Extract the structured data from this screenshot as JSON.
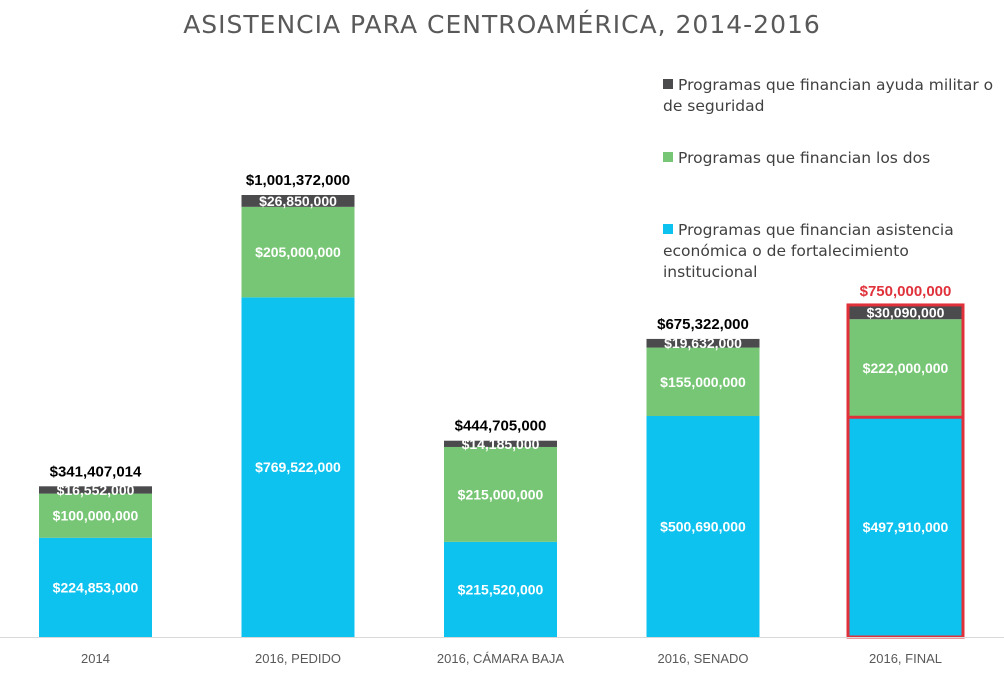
{
  "colors": {
    "military": "#4b4b4d",
    "both": "#77c675",
    "economic": "#0ec2ef",
    "highlight": "#e0313a",
    "axis": "#d9d9d9",
    "total_label": "#000000",
    "segment_label": "#ffffff",
    "category_label": "#595959"
  },
  "chart_data": {
    "type": "bar",
    "stacked": true,
    "title": "ASISTENCIA PARA CENTROAMÉRICA, 2014-2016",
    "categories": [
      "2014",
      "2016, PEDIDO",
      "2016, CÁMARA BAJA",
      "2016, SENADO",
      "2016, FINAL"
    ],
    "series": [
      {
        "name": "Programas que financian asistencia económica o de fortalecimiento institucional",
        "color_key": "economic",
        "values": [
          224853000,
          769522000,
          215520000,
          500690000,
          497910000
        ],
        "labels": [
          "$224,853,000",
          "$769,522,000",
          "$215,520,000",
          "$500,690,000",
          "$497,910,000"
        ]
      },
      {
        "name": "Programas que financian los dos",
        "color_key": "both",
        "values": [
          100000000,
          205000000,
          215000000,
          155000000,
          222000000
        ],
        "labels": [
          "$100,000,000",
          "$205,000,000",
          "$215,000,000",
          "$155,000,000",
          "$222,000,000"
        ]
      },
      {
        "name": "Programas que financian ayuda militar o de seguridad",
        "color_key": "military",
        "values": [
          16552000,
          26850000,
          14185000,
          19632000,
          30090000
        ],
        "labels": [
          "$16,552,000",
          "$26,850,000",
          "$14,185,000",
          "$19,632,000",
          "$30,090,000"
        ]
      }
    ],
    "totals": [
      341407014,
      1001372000,
      444705000,
      675322000,
      750000000
    ],
    "total_labels": [
      "$341,407,014",
      "$1,001,372,000",
      "$444,705,000",
      "$675,322,000",
      "$750,000,000"
    ],
    "highlighted_category": "2016, FINAL",
    "ylim": [
      0,
      1001372000
    ],
    "gridlines": false,
    "y_axis_visible": false,
    "legend_position": "top-right",
    "legend_order": [
      "military",
      "both",
      "economic"
    ]
  }
}
